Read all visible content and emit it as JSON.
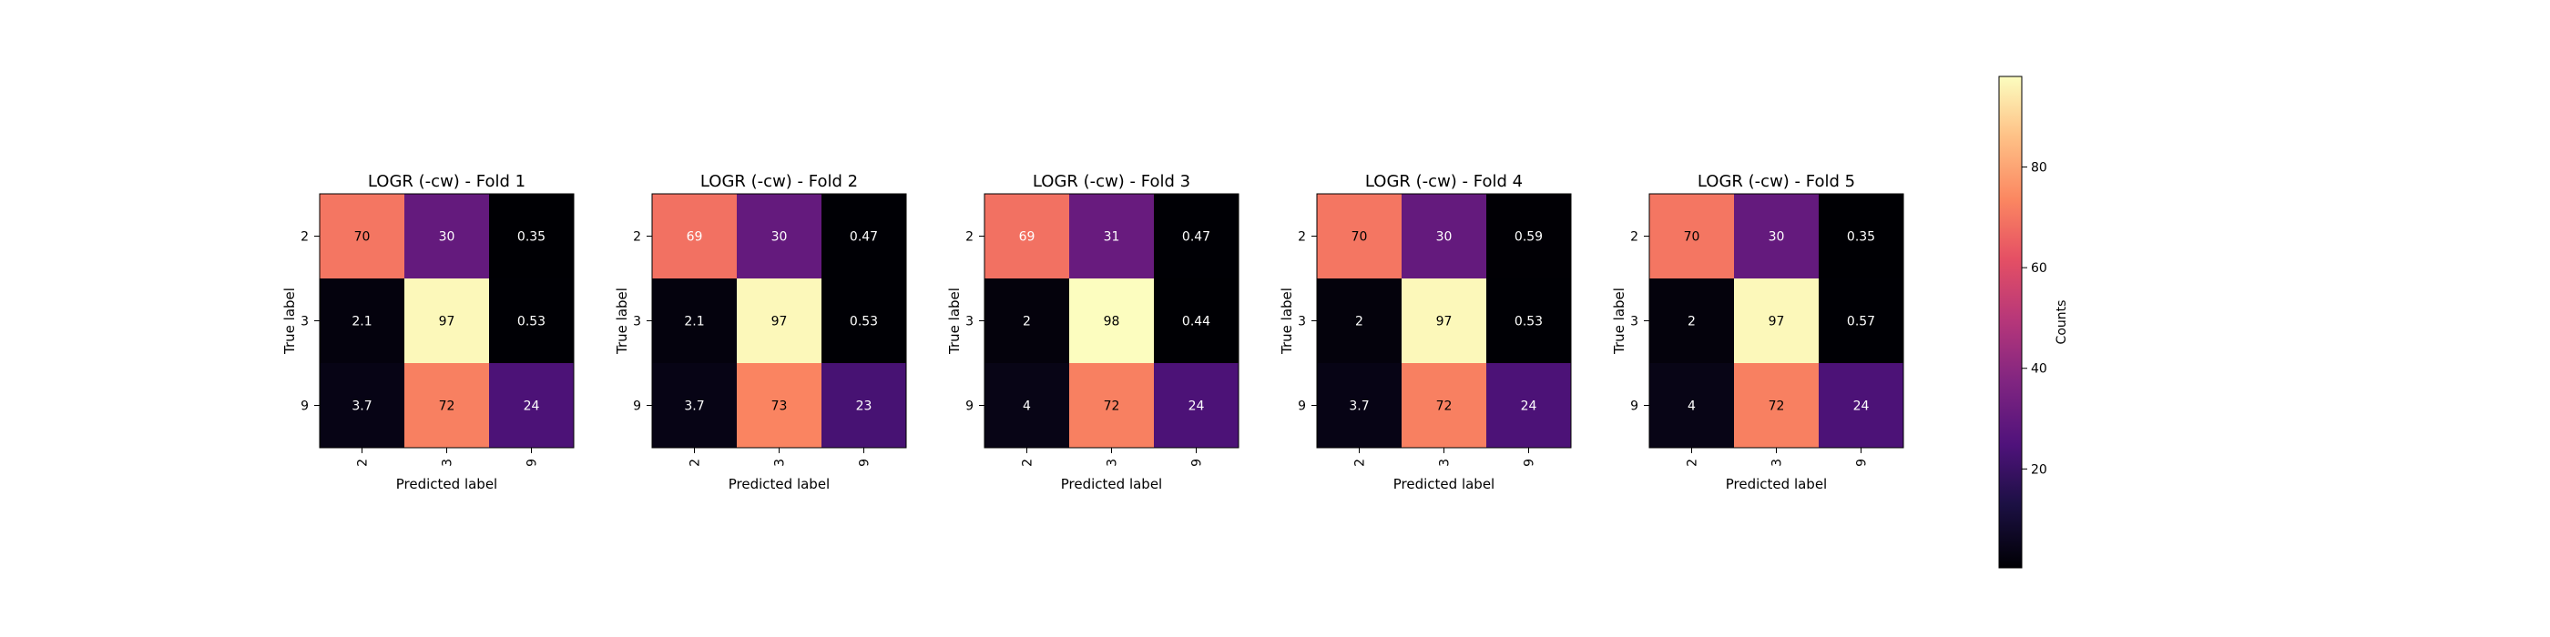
{
  "figure": {
    "colorbar": {
      "label": "Counts",
      "ticks": [
        20,
        40,
        60,
        80
      ],
      "range": [
        0.35,
        98
      ],
      "colormap": "magma"
    }
  },
  "chart_data": [
    {
      "type": "heatmap",
      "title": "LOGR (-cw) - Fold 1",
      "xlabel": "Predicted label",
      "ylabel": "True label",
      "x_categories": [
        "2",
        "3",
        "9"
      ],
      "y_categories": [
        "2",
        "3",
        "9"
      ],
      "values": [
        [
          70,
          30,
          0.35
        ],
        [
          2.1,
          97,
          0.53
        ],
        [
          3.7,
          72,
          24
        ]
      ]
    },
    {
      "type": "heatmap",
      "title": "LOGR (-cw) - Fold 2",
      "xlabel": "Predicted label",
      "ylabel": "True label",
      "x_categories": [
        "2",
        "3",
        "9"
      ],
      "y_categories": [
        "2",
        "3",
        "9"
      ],
      "values": [
        [
          69,
          30,
          0.47
        ],
        [
          2.1,
          97,
          0.53
        ],
        [
          3.7,
          73,
          23
        ]
      ]
    },
    {
      "type": "heatmap",
      "title": "LOGR (-cw) - Fold 3",
      "xlabel": "Predicted label",
      "ylabel": "True label",
      "x_categories": [
        "2",
        "3",
        "9"
      ],
      "y_categories": [
        "2",
        "3",
        "9"
      ],
      "values": [
        [
          69,
          31,
          0.47
        ],
        [
          2,
          98,
          0.44
        ],
        [
          4,
          72,
          24
        ]
      ]
    },
    {
      "type": "heatmap",
      "title": "LOGR (-cw) - Fold 4",
      "xlabel": "Predicted label",
      "ylabel": "True label",
      "x_categories": [
        "2",
        "3",
        "9"
      ],
      "y_categories": [
        "2",
        "3",
        "9"
      ],
      "values": [
        [
          70,
          30,
          0.59
        ],
        [
          2,
          97,
          0.53
        ],
        [
          3.7,
          72,
          24
        ]
      ]
    },
    {
      "type": "heatmap",
      "title": "LOGR (-cw) - Fold 5",
      "xlabel": "Predicted label",
      "ylabel": "True label",
      "x_categories": [
        "2",
        "3",
        "9"
      ],
      "y_categories": [
        "2",
        "3",
        "9"
      ],
      "values": [
        [
          70,
          30,
          0.35
        ],
        [
          2,
          97,
          0.57
        ],
        [
          4,
          72,
          24
        ]
      ]
    }
  ]
}
